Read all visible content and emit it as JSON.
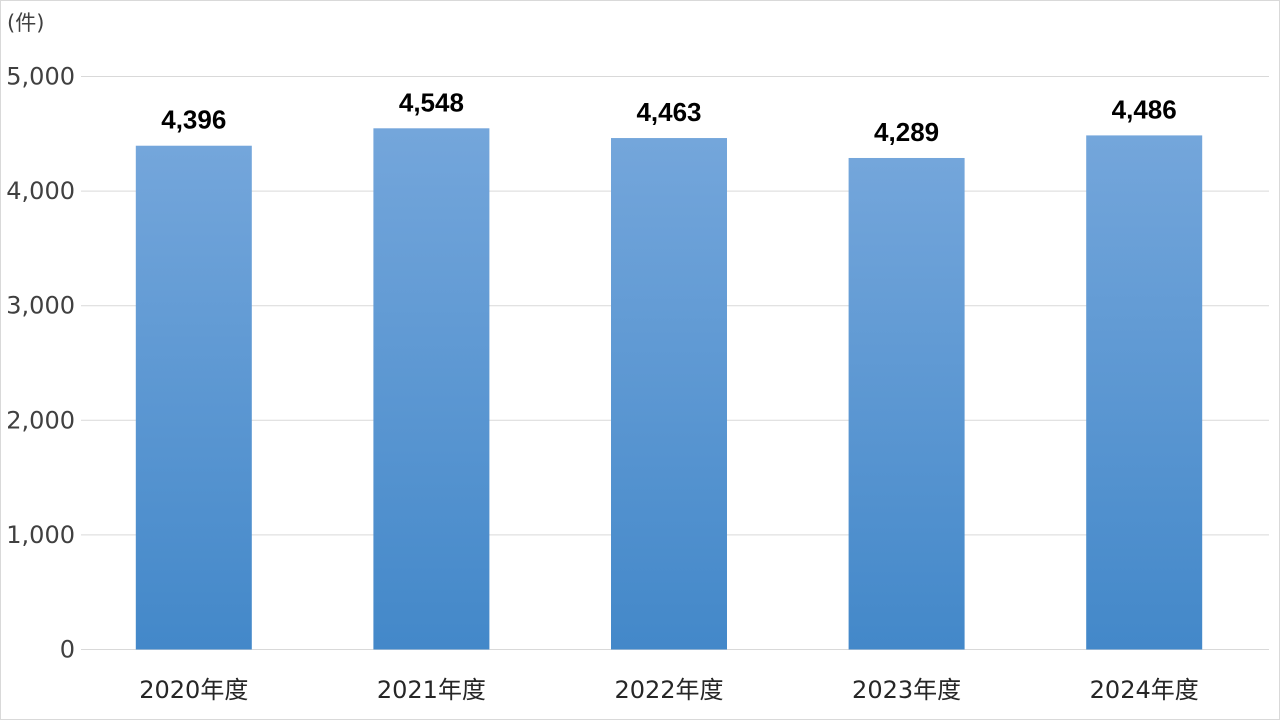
{
  "chart_data": {
    "type": "bar",
    "title": "",
    "xlabel": "",
    "ylabel": "(件)",
    "categories": [
      "2020年度",
      "2021年度",
      "2022年度",
      "2023年度",
      "2024年度"
    ],
    "values": [
      4396,
      4548,
      4463,
      4289,
      4486
    ],
    "data_labels": [
      "4,396",
      "4,548",
      "4,463",
      "4,289",
      "4,486"
    ],
    "ylim": [
      0,
      5000
    ],
    "yticks": [
      0,
      1000,
      2000,
      3000,
      4000,
      5000
    ],
    "ytick_labels": [
      "0",
      "1,000",
      "2,000",
      "3,000",
      "4,000",
      "5,000"
    ],
    "grid": true,
    "legend": "none",
    "colors": {
      "bar_top": "#74a6db",
      "bar_bottom": "#4388c9",
      "grid": "#d9d9d9"
    }
  }
}
